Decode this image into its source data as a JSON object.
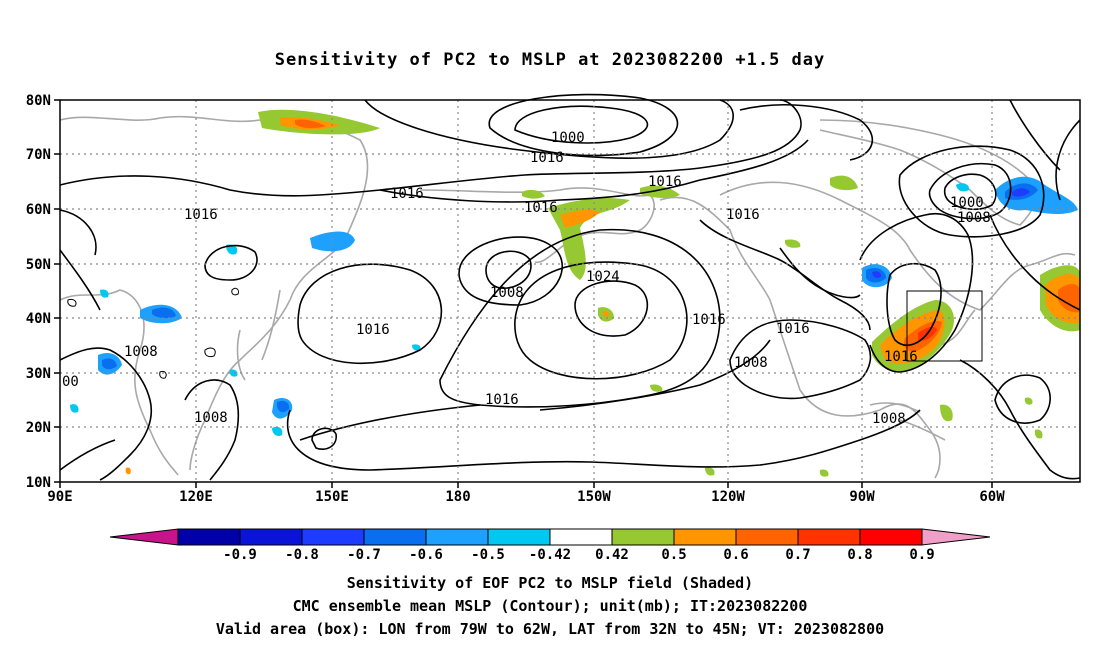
{
  "title": "Sensitivity of PC2 to MSLP at 2023082200 +1.5 day",
  "lat_labels": [
    "80N",
    "70N",
    "60N",
    "50N",
    "40N",
    "30N",
    "20N",
    "10N"
  ],
  "lon_labels": [
    "90E",
    "120E",
    "150E",
    "180",
    "150W",
    "120W",
    "90W",
    "60W"
  ],
  "colorbar": {
    "labels": [
      "-0.9",
      "-0.8",
      "-0.7",
      "-0.6",
      "-0.5",
      "-0.42",
      "0.42",
      "0.5",
      "0.6",
      "0.7",
      "0.8",
      "0.9"
    ],
    "colors": [
      "#c8138a",
      "#0000a8",
      "#0a14d8",
      "#1e3cff",
      "#0a6ef0",
      "#1ea0ff",
      "#00c8f0",
      "#ffffff",
      "#96c832",
      "#ff9600",
      "#ff6400",
      "#ff3200",
      "#ff0000",
      "#f0a0c8"
    ]
  },
  "contour_labels": [
    "1000",
    "1016",
    "1016",
    "1016",
    "1016",
    "1016",
    "1016",
    "1008",
    "1024",
    "1016",
    "1016",
    "1008",
    "1016",
    "1000",
    "1008",
    "1016",
    "1008",
    "1008",
    "1016",
    "1008",
    "00"
  ],
  "captions": [
    "Sensitivity of EOF PC2 to MSLP field (Shaded)",
    "CMC ensemble mean MSLP (Contour); unit(mb); IT:2023082200",
    "Valid area (box): LON from 79W to 62W, LAT from 32N to 45N; VT: 2023082800"
  ]
}
